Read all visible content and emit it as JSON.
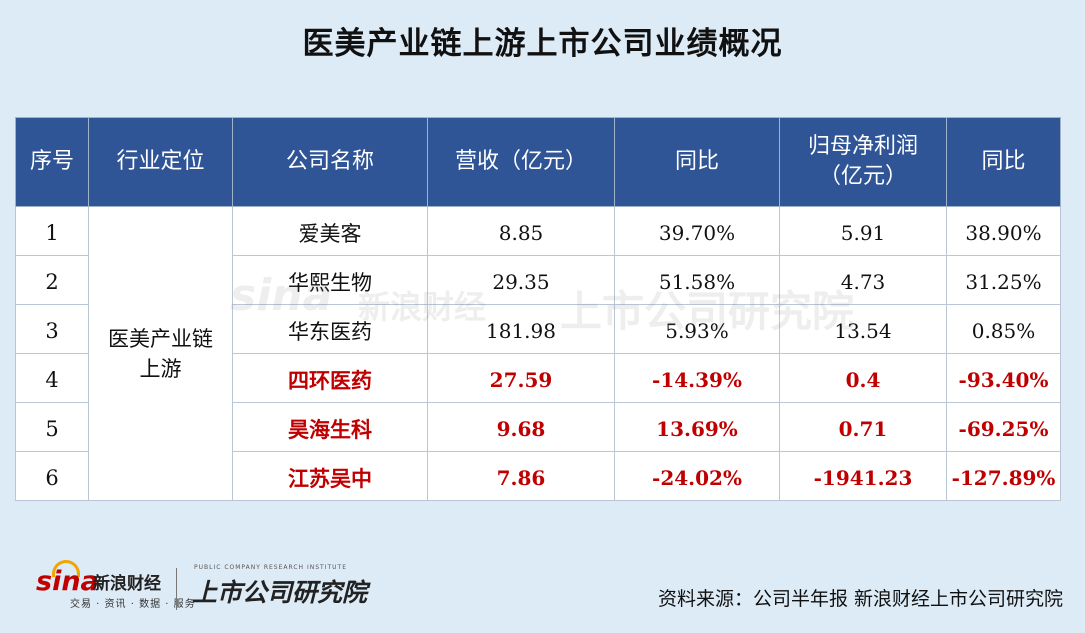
{
  "title": "医美产业链上游上市公司业绩概况",
  "table": {
    "headers": [
      "序号",
      "行业定位",
      "公司名称",
      "营收（亿元）",
      "同比",
      "归母净利润\n（亿元）",
      "同比"
    ],
    "industry": "医美产业链\n上游",
    "rows": [
      {
        "idx": "1",
        "company": "爱美客",
        "revenue": "8.85",
        "rev_yoy": "39.70%",
        "profit": "5.91",
        "profit_yoy": "38.90%"
      },
      {
        "idx": "2",
        "company": "华熙生物",
        "revenue": "29.35",
        "rev_yoy": "51.58%",
        "profit": "4.73",
        "profit_yoy": "31.25%"
      },
      {
        "idx": "3",
        "company": "华东医药",
        "revenue": "181.98",
        "rev_yoy": "5.93%",
        "profit": "13.54",
        "profit_yoy": "0.85%"
      },
      {
        "idx": "4",
        "company": "四环医药",
        "revenue": "27.59",
        "rev_yoy": "-14.39%",
        "profit": "0.4",
        "profit_yoy": "-93.40%"
      },
      {
        "idx": "5",
        "company": "昊海生科",
        "revenue": "9.68",
        "rev_yoy": "13.69%",
        "profit": "0.71",
        "profit_yoy": "-69.25%"
      },
      {
        "idx": "6",
        "company": "江苏吴中",
        "revenue": "7.86",
        "rev_yoy": "-24.02%",
        "profit": "-1941.23",
        "profit_yoy": "-127.89%"
      }
    ]
  },
  "watermark": {
    "sina": "sina",
    "brand": "新浪财经",
    "institute": "上市公司研究院"
  },
  "footer": {
    "logo_sina": "sina",
    "logo_brand": "新浪财经",
    "logo_sub": "交易 · 资讯 · 数据 · 服务",
    "logo_en": "PUBLIC COMPANY RESEARCH INSTITUTE",
    "logo_institute": "上市公司研究院",
    "source": "资料来源：公司半年报 新浪财经上市公司研究院"
  },
  "colors": {
    "header_bg": "#2f5597",
    "page_bg": "#ddebf7",
    "highlight": "#c00000"
  }
}
